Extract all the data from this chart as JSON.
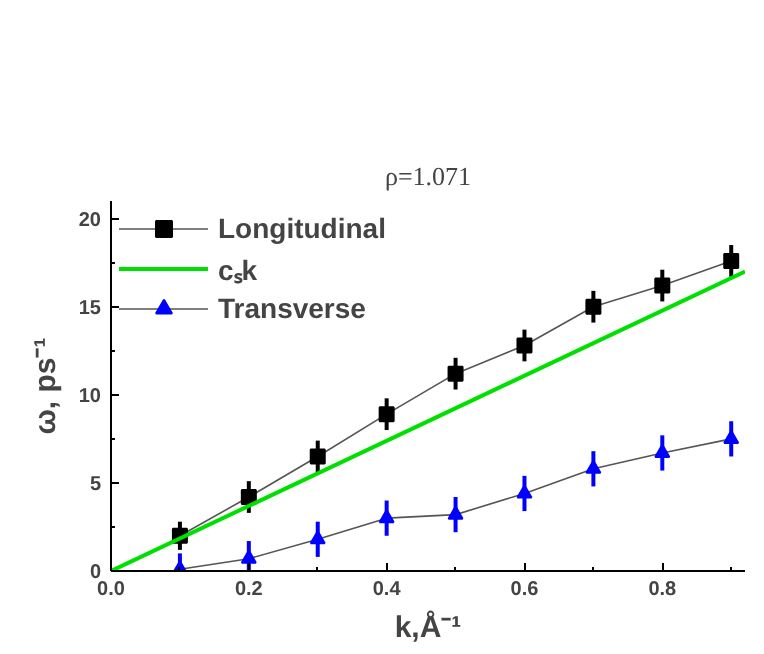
{
  "chart_data": {
    "type": "line",
    "title": "ρ=1.071",
    "xlabel": "k,Å⁻¹",
    "ylabel": "ω, ps⁻¹",
    "xlim": [
      0,
      0.92
    ],
    "ylim": [
      0,
      21
    ],
    "xticks": [
      {
        "value": 0.0,
        "label": "0.0"
      },
      {
        "value": 0.2,
        "label": "0.2"
      },
      {
        "value": 0.4,
        "label": "0.4"
      },
      {
        "value": 0.6,
        "label": "0.6"
      },
      {
        "value": 0.8,
        "label": "0.8"
      }
    ],
    "yticks": [
      0,
      5,
      10,
      15,
      20
    ],
    "legend": "top left",
    "grid": false,
    "series": [
      {
        "name": "Longitudinal",
        "color": "#000000",
        "marker": "square",
        "x": [
          0.1,
          0.2,
          0.3,
          0.4,
          0.5,
          0.6,
          0.7,
          0.8,
          0.9
        ],
        "values": [
          2.0,
          4.2,
          6.5,
          8.9,
          11.2,
          12.8,
          15.0,
          16.2,
          17.6
        ],
        "errors": [
          0.8,
          0.9,
          0.9,
          0.9,
          0.9,
          0.9,
          0.9,
          0.9,
          0.9
        ]
      },
      {
        "name": "cₛk",
        "color": "#00e000",
        "marker": "none",
        "x": [
          0.0,
          0.92
        ],
        "values": [
          0.0,
          17.0
        ]
      },
      {
        "name": "Transverse",
        "color": "#0000ff",
        "marker": "triangle",
        "x": [
          0.1,
          0.2,
          0.3,
          0.4,
          0.5,
          0.6,
          0.7,
          0.8,
          0.9
        ],
        "values": [
          0.1,
          0.7,
          1.8,
          3.0,
          3.2,
          4.4,
          5.8,
          6.7,
          7.5
        ],
        "errors": [
          0.9,
          1.0,
          1.0,
          1.0,
          1.0,
          1.0,
          1.0,
          1.0,
          1.0
        ]
      }
    ]
  }
}
